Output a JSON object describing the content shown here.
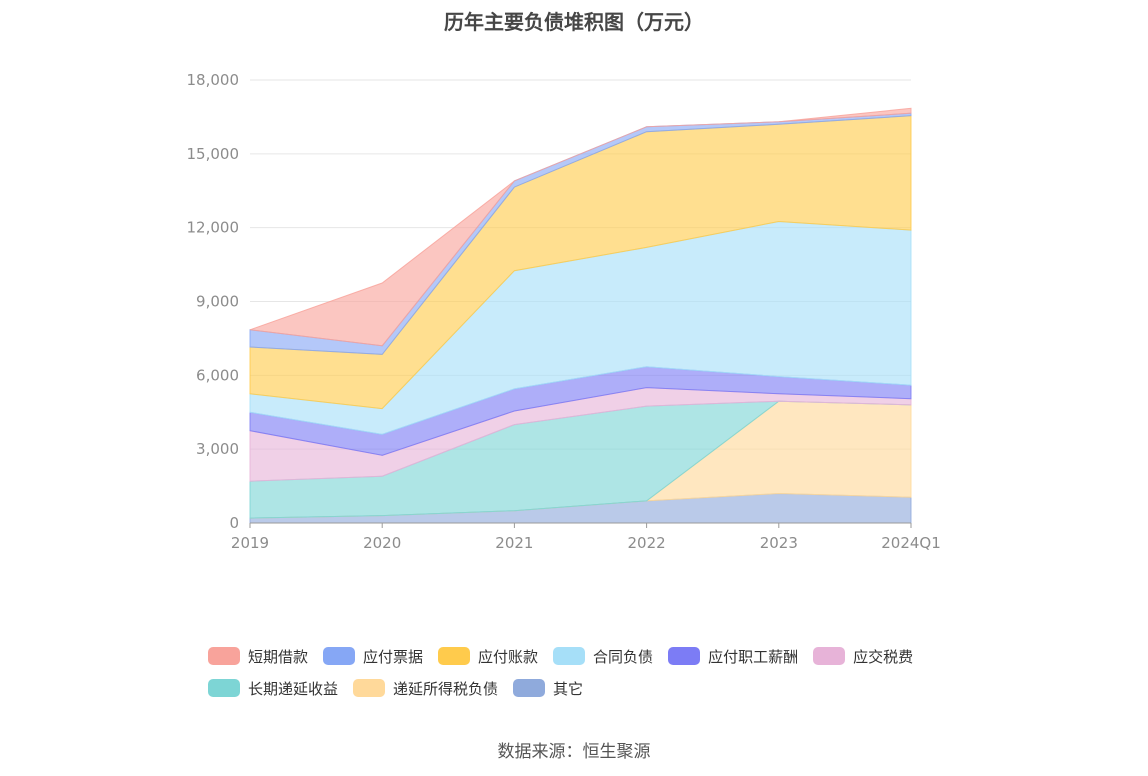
{
  "title": "历年主要负债堆积图（万元）",
  "source": "数据来源：恒生聚源",
  "chart_data": {
    "type": "area",
    "stacked": true,
    "categories": [
      "2019",
      "2020",
      "2021",
      "2022",
      "2023",
      "2024Q1"
    ],
    "ylim": [
      0,
      18000
    ],
    "yticks": [
      "0",
      "3,000",
      "6,000",
      "9,000",
      "12,000",
      "15,000",
      "18,000"
    ],
    "ytick_values": [
      0,
      3000,
      6000,
      9000,
      12000,
      15000,
      18000
    ],
    "grid": true,
    "legend_position": "bottom",
    "series": [
      {
        "name": "其它",
        "color": "#8FAADC",
        "values": [
          200,
          300,
          500,
          900,
          1200,
          1050
        ]
      },
      {
        "name": "递延所得税负债",
        "color": "#FFD99A",
        "values": [
          0,
          0,
          0,
          0,
          3750,
          3750
        ]
      },
      {
        "name": "长期递延收益",
        "color": "#7DD5D5",
        "values": [
          1500,
          1600,
          3500,
          3850,
          0,
          0
        ]
      },
      {
        "name": "应交税费",
        "color": "#E7B3D8",
        "values": [
          2050,
          850,
          550,
          750,
          300,
          250
        ]
      },
      {
        "name": "应付职工薪酬",
        "color": "#7C7CF5",
        "values": [
          750,
          850,
          900,
          850,
          700,
          550
        ]
      },
      {
        "name": "合同负债",
        "color": "#A6DFF8",
        "values": [
          750,
          1050,
          4800,
          4850,
          6300,
          6300
        ]
      },
      {
        "name": "应付账款",
        "color": "#FFCB4C",
        "values": [
          1900,
          2200,
          3400,
          4700,
          3950,
          4650
        ]
      },
      {
        "name": "应付票据",
        "color": "#86A7F5",
        "values": [
          700,
          350,
          250,
          200,
          100,
          100
        ]
      },
      {
        "name": "短期借款",
        "color": "#F8A39B",
        "values": [
          0,
          2550,
          0,
          0,
          0,
          200
        ]
      }
    ]
  },
  "legend": [
    {
      "name": "短期借款",
      "color": "#F8A39B"
    },
    {
      "name": "应付票据",
      "color": "#86A7F5"
    },
    {
      "name": "应付账款",
      "color": "#FFCB4C"
    },
    {
      "name": "合同负债",
      "color": "#A6DFF8"
    },
    {
      "name": "应付职工薪酬",
      "color": "#7C7CF5"
    },
    {
      "name": "应交税费",
      "color": "#E7B3D8"
    },
    {
      "name": "长期递延收益",
      "color": "#7DD5D5"
    },
    {
      "name": "递延所得税负债",
      "color": "#FFD99A"
    },
    {
      "name": "其它",
      "color": "#8FAADC"
    }
  ]
}
